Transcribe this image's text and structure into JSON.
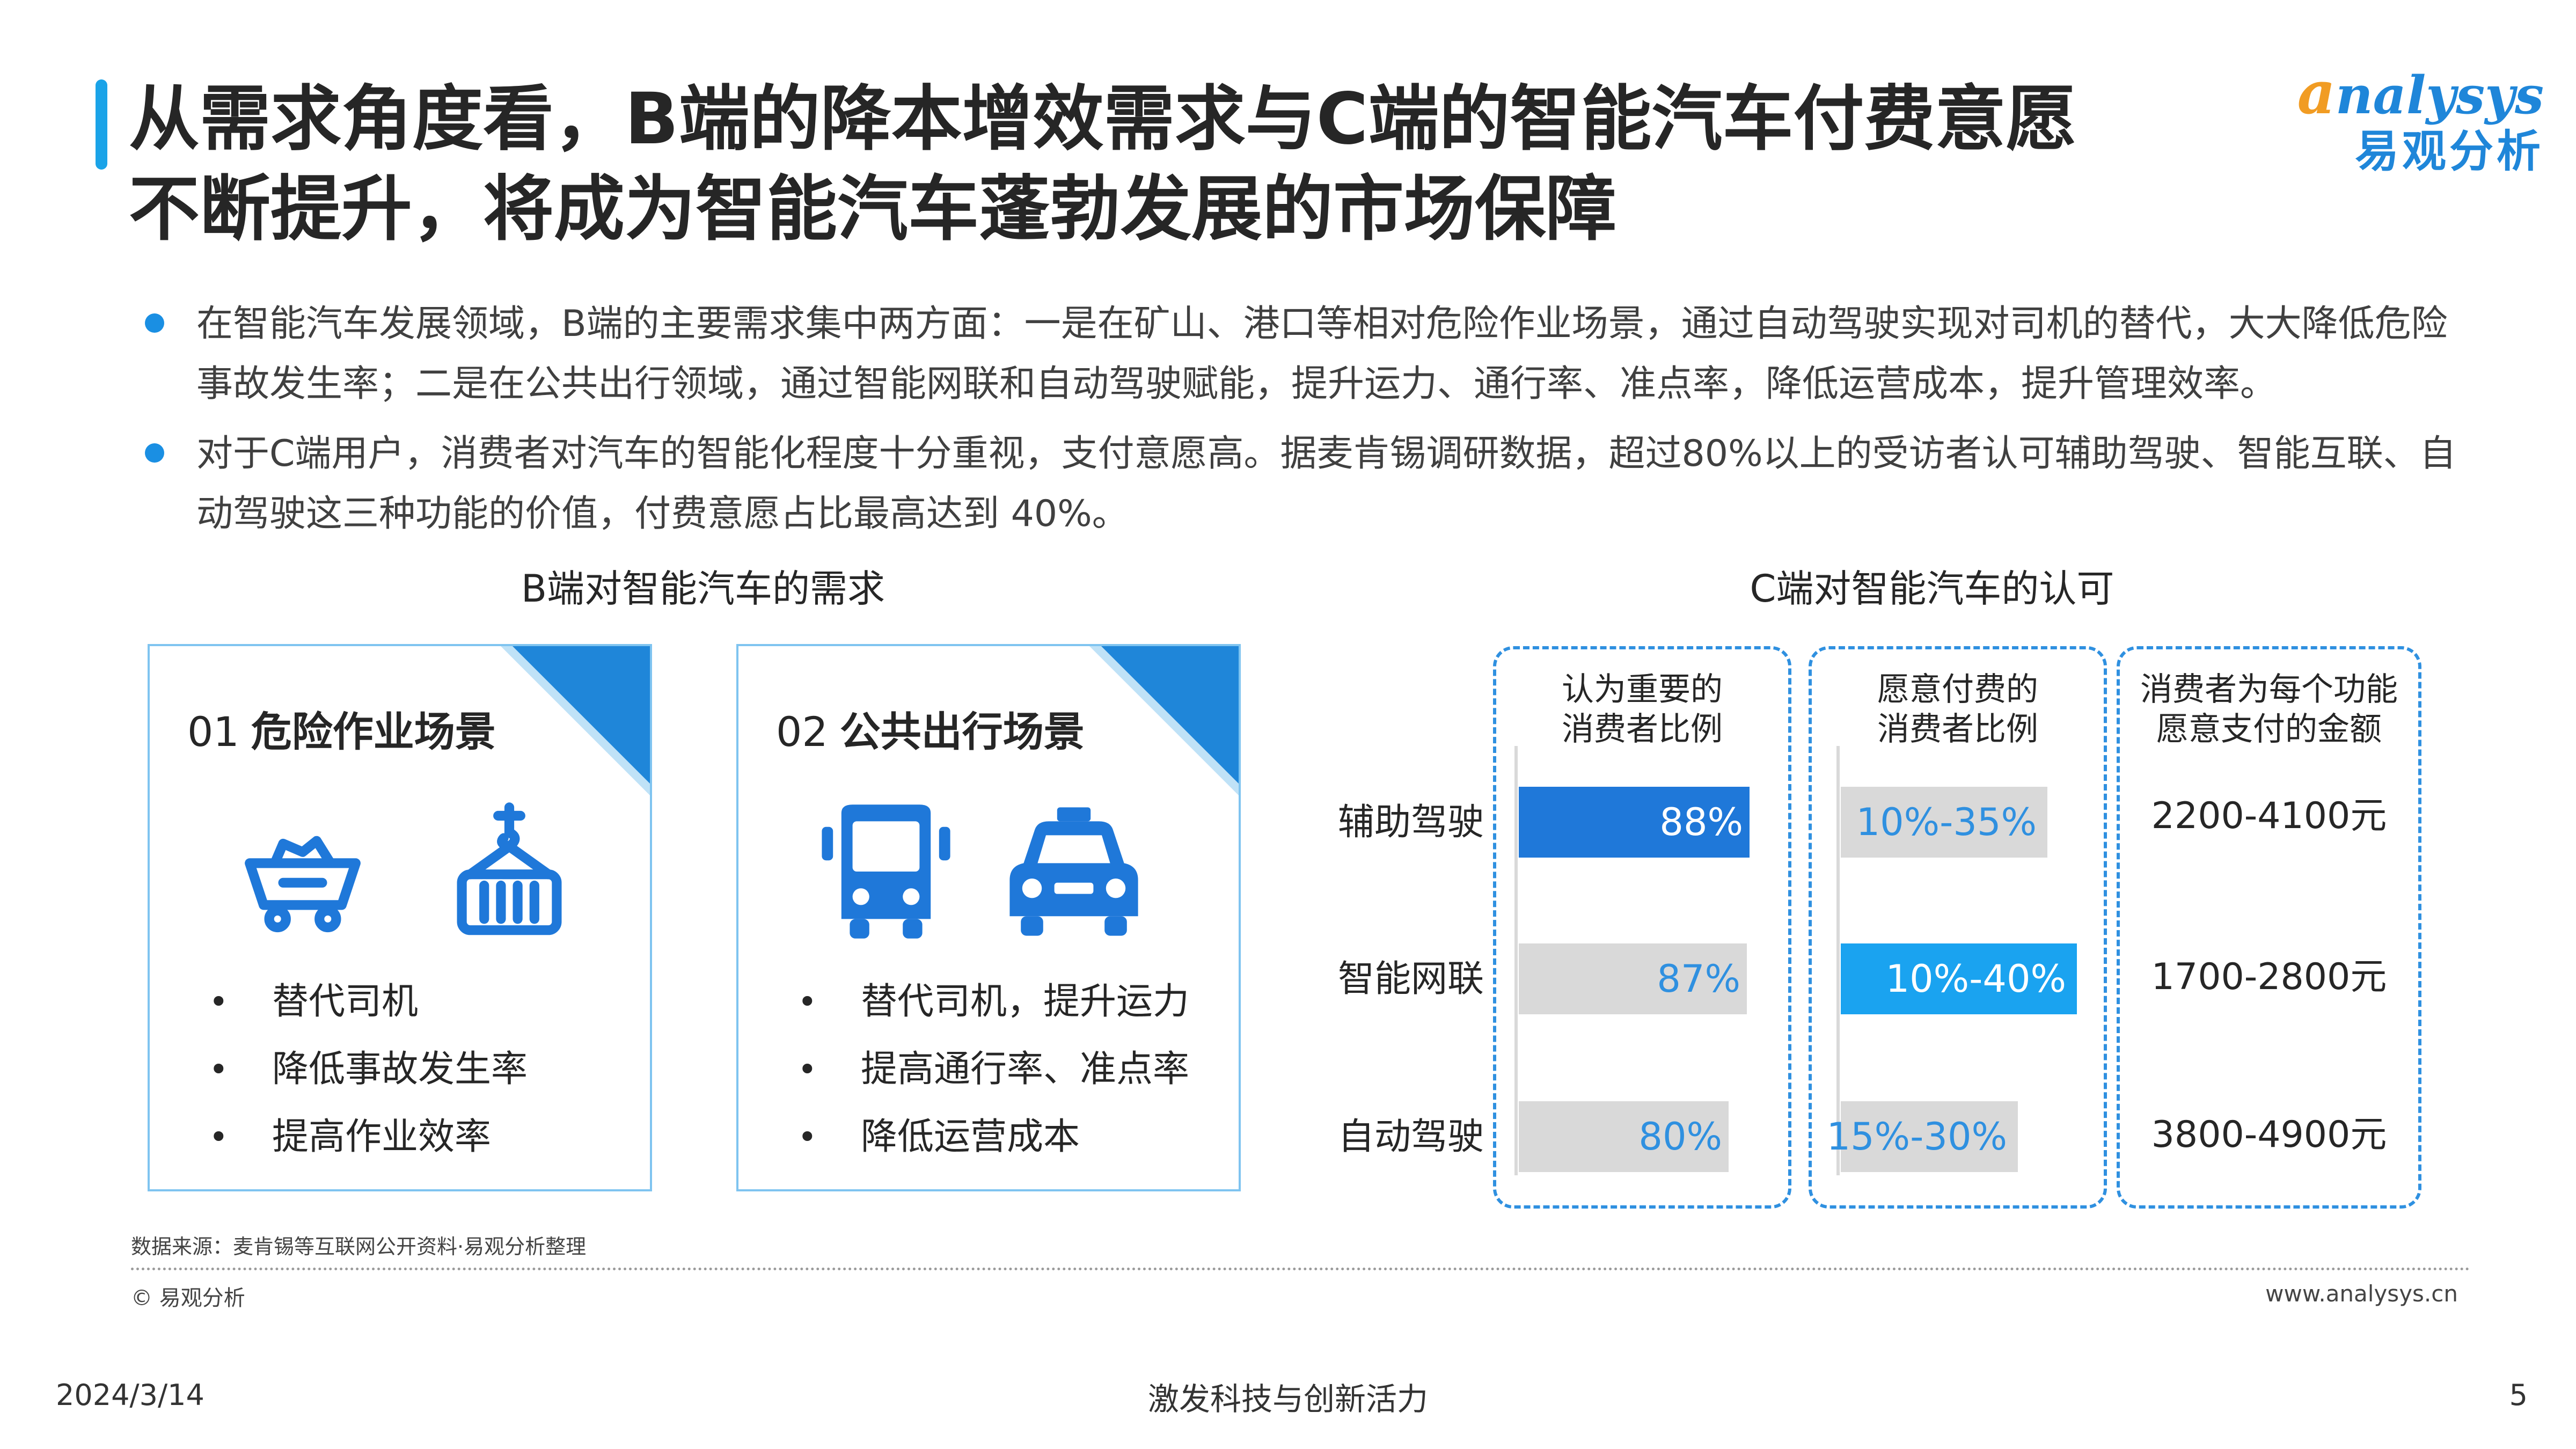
{
  "header": {
    "title_line1": "从需求角度看，B端的降本增效需求与C端的智能汽车付费意愿",
    "title_line2": "不断提升，将成为智能汽车蓬勃发展的市场保障",
    "logo_en_first": "a",
    "logo_en_rest": "nalysys",
    "logo_cn": "易观分析"
  },
  "bullets": [
    "在智能汽车发展领域，B端的主要需求集中两方面：一是在矿山、港口等相对危险作业场景，通过自动驾驶实现对司机的替代，大大降低危险事故发生率；二是在公共出行领域，通过智能网联和自动驾驶赋能，提升运力、通行率、准点率，降低运营成本，提升管理效率。",
    "对于C端用户，消费者对汽车的智能化程度十分重视，支付意愿高。据麦肯锡调研数据，超过80%以上的受访者认可辅助驾驶、智能互联、自动驾驶这三种功能的价值，付费意愿占比最高达到 40%。"
  ],
  "b_side": {
    "section_title": "B端对智能汽车的需求",
    "cards": [
      {
        "num": "01",
        "name": "危险作业场景",
        "icons": [
          "mine-cart-icon",
          "crane-container-icon"
        ],
        "items": [
          "替代司机",
          "降低事故发生率",
          "提高作业效率"
        ]
      },
      {
        "num": "02",
        "name": "公共出行场景",
        "icons": [
          "bus-icon",
          "taxi-icon"
        ],
        "items": [
          "替代司机，提升运力",
          "提高通行率、准点率",
          "降低运营成本"
        ]
      }
    ],
    "bullet_mark": "•"
  },
  "c_side": {
    "section_title": "C端对智能汽车的认可",
    "col1_header": [
      "认为重要的",
      "消费者比例"
    ],
    "col2_header": [
      "愿意付费的",
      "消费者比例"
    ],
    "col3_header": [
      "消费者为每个功能",
      "愿意支付的金额"
    ],
    "rows": [
      {
        "label": "辅助驾驶",
        "important": "88%",
        "important_value": 88,
        "pay": "10%-35%",
        "pay_value": 35,
        "amount": "2200-4100元"
      },
      {
        "label": "智能网联",
        "important": "87%",
        "important_value": 87,
        "pay": "10%-40%",
        "pay_value": 40,
        "amount": "1700-2800元"
      },
      {
        "label": "自动驾驶",
        "important": "80%",
        "important_value": 80,
        "pay": "15%-30%",
        "pay_value": 30,
        "amount": "3800-4900元"
      }
    ],
    "colors": {
      "highlight_dark": "#1f78d9",
      "highlight_light": "#1aa3f0",
      "muted": "#d9d9d9",
      "muted_text": "#2f90e0"
    }
  },
  "footer": {
    "source": "数据来源：麦肯锡等互联网公开资料·易观分析整理",
    "copyright": "© 易观分析",
    "website": "www.analysys.cn",
    "date": "2024/3/14",
    "slogan": "激发科技与创新活力",
    "page": "5"
  }
}
